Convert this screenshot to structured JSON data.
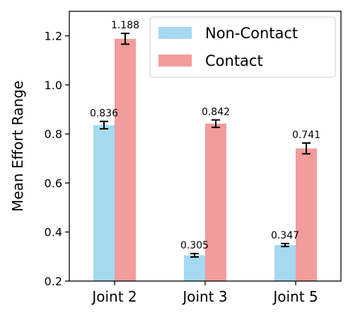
{
  "chart_data": {
    "type": "bar",
    "title": "",
    "xlabel": "",
    "ylabel": "Mean Effort Range",
    "categories": [
      "Joint 2",
      "Joint 3",
      "Joint 5"
    ],
    "ylim": [
      0.2,
      1.3
    ],
    "yticks": [
      "0.2",
      "0.4",
      "0.6",
      "0.8",
      "1.0",
      "1.2"
    ],
    "grid": false,
    "legend_position": "top-right",
    "series": [
      {
        "name": "Non-Contact",
        "color": "#a4d9ef",
        "values": [
          0.836,
          0.305,
          0.347
        ],
        "errors": [
          0.015,
          0.007,
          0.006
        ],
        "labels": [
          "0.836",
          "0.305",
          "0.347"
        ]
      },
      {
        "name": "Contact",
        "color": "#f29c9c",
        "values": [
          1.188,
          0.842,
          0.741
        ],
        "errors": [
          0.022,
          0.015,
          0.022
        ],
        "labels": [
          "1.188",
          "0.842",
          "0.741"
        ]
      }
    ]
  }
}
